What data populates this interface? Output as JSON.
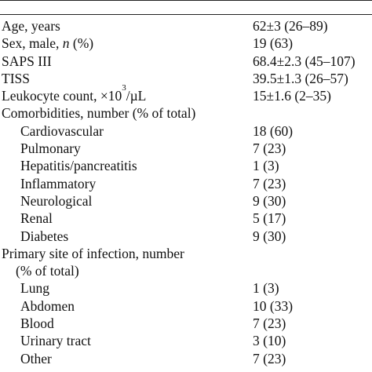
{
  "table": {
    "rows": [
      {
        "label_parts": [
          "Age, years"
        ],
        "value": "62±3 (26–89)",
        "indent": false
      },
      {
        "label_parts": [
          "Sex, male, ",
          "n",
          " (%)"
        ],
        "value": "19 (63)",
        "indent": false
      },
      {
        "label_parts": [
          "SAPS III"
        ],
        "value": "68.4±2.3 (45–107)",
        "indent": false
      },
      {
        "label_parts": [
          "TISS"
        ],
        "value": "39.5±1.3 (26–57)",
        "indent": false
      },
      {
        "label_parts": [
          "Leukocyte count, ×10",
          "3",
          "/µL"
        ],
        "value": "15±1.6 (2–35)",
        "indent": false
      },
      {
        "label_parts": [
          "Comorbidities, number (% of total)"
        ],
        "value": "",
        "indent": false
      },
      {
        "label_parts": [
          "Cardiovascular"
        ],
        "value": "18 (60)",
        "indent": true
      },
      {
        "label_parts": [
          "Pulmonary"
        ],
        "value": "7 (23)",
        "indent": true
      },
      {
        "label_parts": [
          "Hepatitis/pancreatitis"
        ],
        "value": "1 (3)",
        "indent": true
      },
      {
        "label_parts": [
          "Inflammatory"
        ],
        "value": "7 (23)",
        "indent": true
      },
      {
        "label_parts": [
          "Neurological"
        ],
        "value": "9 (30)",
        "indent": true
      },
      {
        "label_parts": [
          "Renal"
        ],
        "value": "5 (17)",
        "indent": true
      },
      {
        "label_parts": [
          "Diabetes"
        ],
        "value": "9 (30)",
        "indent": true
      },
      {
        "label_parts": [
          "Primary site of infection, number"
        ],
        "value": "",
        "indent": false
      },
      {
        "label_parts": [
          "(% of total)"
        ],
        "value": "",
        "indent": false,
        "continuation": true
      },
      {
        "label_parts": [
          "Lung"
        ],
        "value": "1 (3)",
        "indent": true
      },
      {
        "label_parts": [
          "Abdomen"
        ],
        "value": "10 (33)",
        "indent": true
      },
      {
        "label_parts": [
          "Blood"
        ],
        "value": "7 (23)",
        "indent": true
      },
      {
        "label_parts": [
          "Urinary tract"
        ],
        "value": "3 (10)",
        "indent": true
      },
      {
        "label_parts": [
          "Other"
        ],
        "value": "7 (23)",
        "indent": true
      }
    ]
  }
}
